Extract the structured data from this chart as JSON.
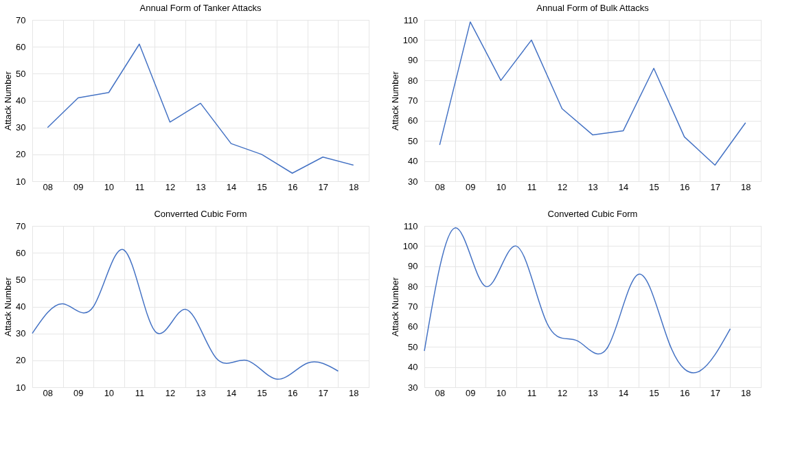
{
  "chart_data": [
    {
      "type": "line",
      "title": "Annual Form of Tanker Attacks",
      "ylabel": "Attack Number",
      "categories": [
        "08",
        "09",
        "10",
        "11",
        "12",
        "13",
        "14",
        "15",
        "16",
        "17",
        "18"
      ],
      "series": [
        {
          "color": "#4472c4",
          "values": [
            30,
            41,
            43,
            61,
            32,
            39,
            24,
            20,
            13,
            19,
            16
          ]
        }
      ],
      "ylim": [
        10,
        70
      ],
      "yticks": [
        10,
        20,
        30,
        40,
        50,
        60,
        70
      ],
      "grid": true
    },
    {
      "type": "line",
      "title": "Annual Form of Bulk Attacks",
      "ylabel": "Attack Number",
      "categories": [
        "08",
        "09",
        "10",
        "11",
        "12",
        "13",
        "14",
        "15",
        "16",
        "17",
        "18"
      ],
      "series": [
        {
          "color": "#4472c4",
          "values": [
            48,
            109,
            80,
            100,
            66,
            53,
            55,
            86,
            52,
            38,
            59
          ]
        }
      ],
      "ylim": [
        30,
        110
      ],
      "yticks": [
        30,
        40,
        50,
        60,
        70,
        80,
        90,
        100,
        110
      ],
      "grid": true
    },
    {
      "type": "line",
      "title": "Converrted Cubic Form",
      "ylabel": "Attack Number",
      "x": [
        7.5,
        8.5,
        9.5,
        10.5,
        11.5,
        12.5,
        13.5,
        14.5,
        15.5,
        16.5,
        17.5
      ],
      "series": [
        {
          "color": "#4472c4",
          "values": [
            30,
            41,
            40,
            61,
            31,
            39,
            21,
            20,
            13,
            19,
            16
          ]
        }
      ],
      "xlim": [
        7.5,
        18.5
      ],
      "xticks": [
        {
          "value": 7.5,
          "label": null
        },
        {
          "value": 8,
          "label": "08"
        },
        {
          "value": 8.5,
          "label": null
        },
        {
          "value": 9,
          "label": "09"
        },
        {
          "value": 9.5,
          "label": null
        },
        {
          "value": 10,
          "label": "10"
        },
        {
          "value": 10.5,
          "label": null
        },
        {
          "value": 11,
          "label": "11"
        },
        {
          "value": 11.5,
          "label": null
        },
        {
          "value": 12,
          "label": "12"
        },
        {
          "value": 12.5,
          "label": null
        },
        {
          "value": 13,
          "label": "13"
        },
        {
          "value": 13.5,
          "label": null
        },
        {
          "value": 14,
          "label": "14"
        },
        {
          "value": 14.5,
          "label": null
        },
        {
          "value": 15,
          "label": "15"
        },
        {
          "value": 15.5,
          "label": null
        },
        {
          "value": 16,
          "label": "16"
        },
        {
          "value": 16.5,
          "label": null
        },
        {
          "value": 17,
          "label": "17"
        },
        {
          "value": 17.5,
          "label": null
        },
        {
          "value": 18,
          "label": "18"
        },
        {
          "value": 18.5,
          "label": null
        }
      ],
      "ylim": [
        10,
        70
      ],
      "yticks": [
        10,
        20,
        30,
        40,
        50,
        60,
        70
      ],
      "grid": true
    },
    {
      "type": "line",
      "title": "Converted Cubic Form",
      "ylabel": "Attack Number",
      "x": [
        7.5,
        8.5,
        9.5,
        10.5,
        11.5,
        12.5,
        13.5,
        14.5,
        15.5,
        16.5,
        17.5
      ],
      "series": [
        {
          "color": "#4472c4",
          "values": [
            48,
            109,
            80,
            100,
            62,
            53,
            50,
            86,
            52,
            38,
            59
          ]
        }
      ],
      "xlim": [
        7.5,
        18.5
      ],
      "xticks": [
        {
          "value": 7.5,
          "label": null
        },
        {
          "value": 8,
          "label": "08"
        },
        {
          "value": 8.5,
          "label": null
        },
        {
          "value": 9,
          "label": "09"
        },
        {
          "value": 9.5,
          "label": null
        },
        {
          "value": 10,
          "label": "10"
        },
        {
          "value": 10.5,
          "label": null
        },
        {
          "value": 11,
          "label": "11"
        },
        {
          "value": 11.5,
          "label": null
        },
        {
          "value": 12,
          "label": "12"
        },
        {
          "value": 12.5,
          "label": null
        },
        {
          "value": 13,
          "label": "13"
        },
        {
          "value": 13.5,
          "label": null
        },
        {
          "value": 14,
          "label": "14"
        },
        {
          "value": 14.5,
          "label": null
        },
        {
          "value": 15,
          "label": "15"
        },
        {
          "value": 15.5,
          "label": null
        },
        {
          "value": 16,
          "label": "16"
        },
        {
          "value": 16.5,
          "label": null
        },
        {
          "value": 17,
          "label": "17"
        },
        {
          "value": 17.5,
          "label": null
        },
        {
          "value": 18,
          "label": "18"
        },
        {
          "value": 18.5,
          "label": null
        }
      ],
      "ylim": [
        30,
        110
      ],
      "yticks": [
        30,
        40,
        50,
        60,
        70,
        80,
        90,
        100,
        110
      ],
      "grid": true
    }
  ]
}
